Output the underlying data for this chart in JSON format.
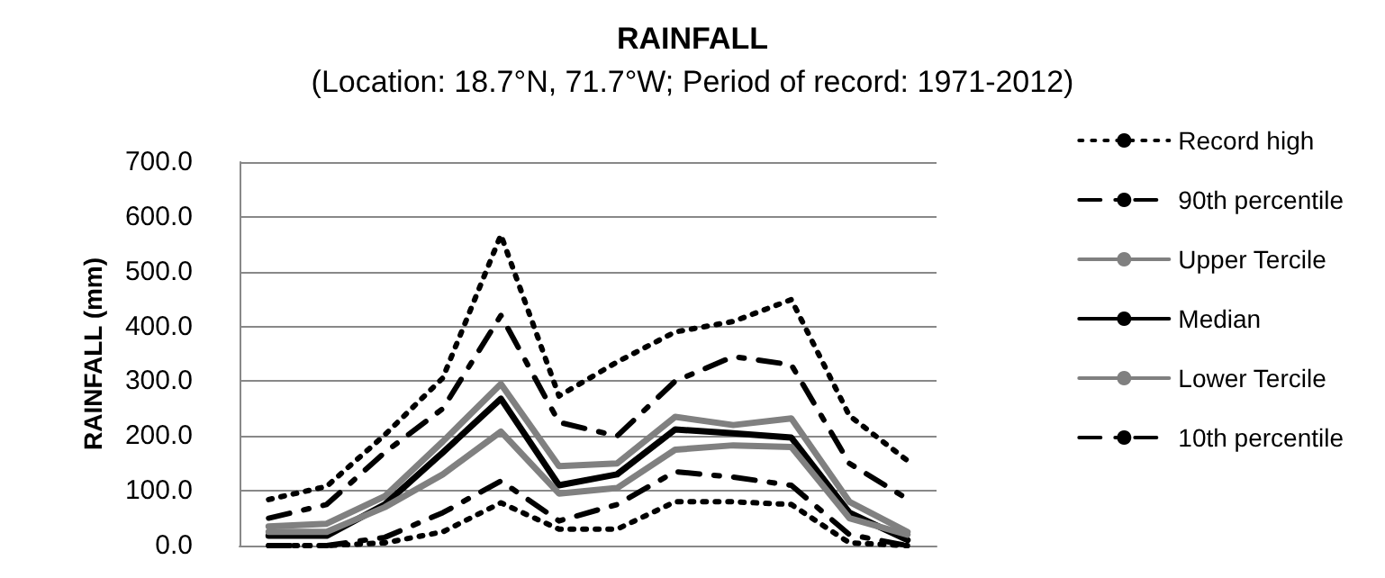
{
  "chart_data": {
    "type": "line",
    "title": "RAINFALL",
    "subtitle": "(Location: 18.7°N, 71.7°W; Period of record: 1971-2012)",
    "ylabel": "RAINFALL (mm)",
    "categories": [
      null,
      null,
      null,
      null,
      null,
      null,
      null,
      null,
      null,
      null,
      null,
      null
    ],
    "ylim": [
      0,
      700
    ],
    "yticks": [
      {
        "value": 0,
        "label": "0.0"
      },
      {
        "value": 100,
        "label": "100.0"
      },
      {
        "value": 200,
        "label": "200.0"
      },
      {
        "value": 300,
        "label": "300.0"
      },
      {
        "value": 400,
        "label": "400.0"
      },
      {
        "value": 500,
        "label": "500.0"
      },
      {
        "value": 600,
        "label": "600.0"
      },
      {
        "value": 700,
        "label": "700.0"
      }
    ],
    "grid": "y",
    "legend": "right",
    "marker": "none",
    "series": [
      {
        "name": "Record high",
        "color": "#000000",
        "line_style": "dotted",
        "values": [
          84,
          108,
          202,
          306,
          567,
          273,
          335,
          390,
          409,
          449,
          237,
          155
        ]
      },
      {
        "name": "90th percentile",
        "color": "#000000",
        "line_style": "dashed",
        "values": [
          50,
          75,
          170,
          250,
          420,
          225,
          200,
          300,
          345,
          330,
          150,
          85
        ]
      },
      {
        "name": "Upper Tercile",
        "color": "#808080",
        "line_style": "solid",
        "values": [
          35,
          40,
          90,
          190,
          295,
          145,
          150,
          235,
          220,
          232,
          80,
          25
        ]
      },
      {
        "name": "Median",
        "color": "#000000",
        "line_style": "solid",
        "values": [
          18,
          18,
          75,
          170,
          268,
          110,
          130,
          212,
          205,
          197,
          60,
          10
        ]
      },
      {
        "name": "Lower Tercile",
        "color": "#808080",
        "line_style": "solid",
        "values": [
          25,
          25,
          70,
          130,
          208,
          95,
          105,
          175,
          183,
          180,
          50,
          20
        ]
      },
      {
        "name": "10th percentile",
        "color": "#000000",
        "line_style": "dashed",
        "values": [
          0,
          0,
          15,
          60,
          118,
          45,
          75,
          135,
          125,
          110,
          20,
          0
        ]
      },
      {
        "color": "#000000",
        "line_style": "dotted",
        "values": [
          0,
          0,
          5,
          25,
          78,
          30,
          30,
          80,
          80,
          75,
          5,
          0
        ]
      }
    ]
  }
}
